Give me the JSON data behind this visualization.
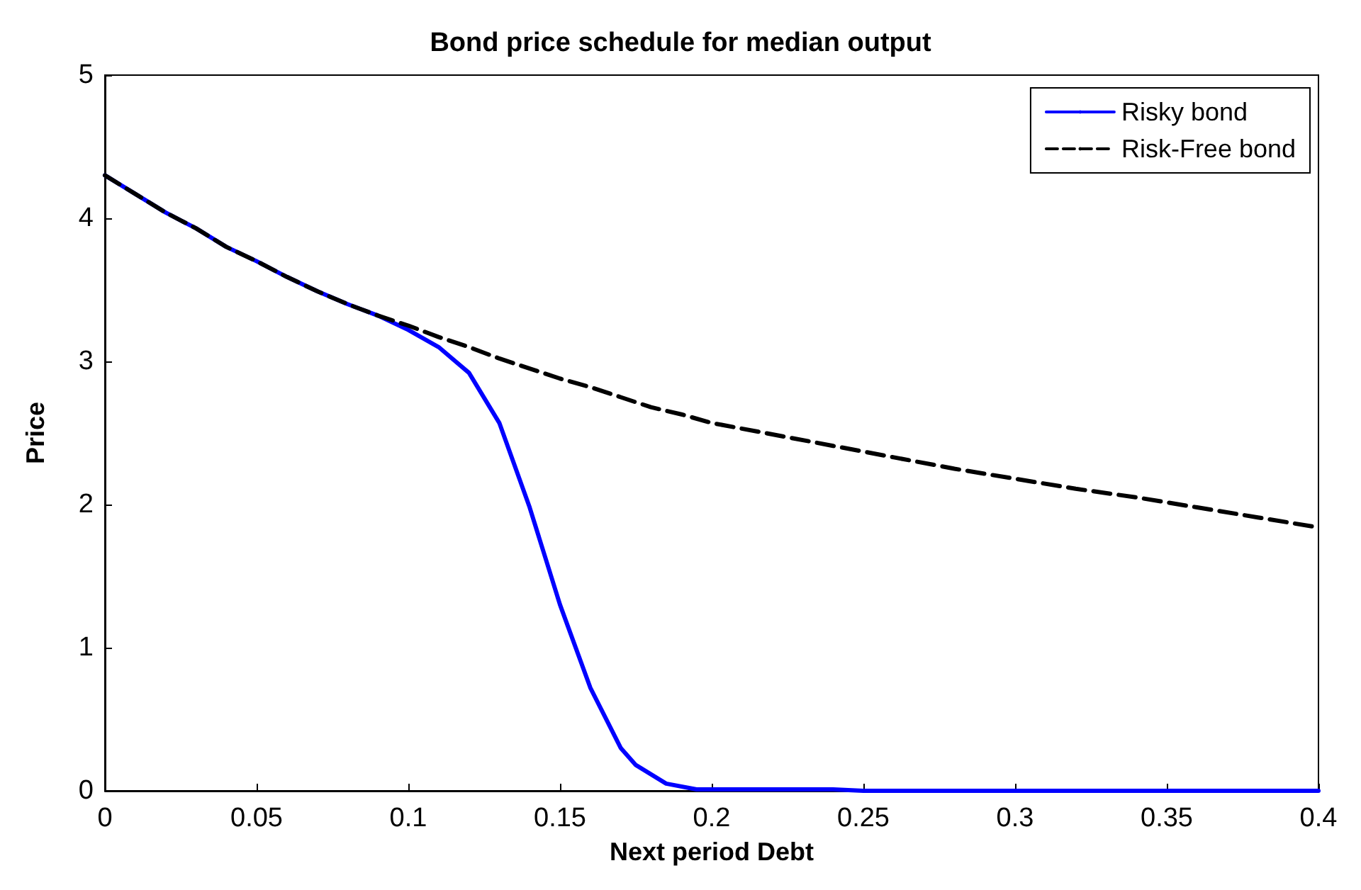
{
  "chart_data": {
    "type": "line",
    "title": "Bond price schedule for median output",
    "xlabel": "Next period Debt",
    "ylabel": "Price",
    "xlim": [
      0,
      0.4
    ],
    "xticks": [
      0,
      0.05,
      0.1,
      0.15,
      0.2,
      0.25,
      0.3,
      0.35,
      0.4
    ],
    "ylim": [
      0,
      5
    ],
    "yticks": [
      0,
      1,
      2,
      3,
      4,
      5
    ],
    "grid": false,
    "legend": "top right",
    "marker": "none",
    "series": [
      {
        "name": "Risky bond",
        "color": "#0000ff",
        "line_style": "solid",
        "x": [
          0,
          0.01,
          0.02,
          0.03,
          0.04,
          0.05,
          0.06,
          0.07,
          0.08,
          0.09,
          0.1,
          0.11,
          0.12,
          0.13,
          0.14,
          0.15,
          0.16,
          0.17,
          0.175,
          0.185,
          0.195,
          0.24,
          0.25,
          0.4
        ],
        "values": [
          4.3,
          4.17,
          4.04,
          3.93,
          3.8,
          3.7,
          3.59,
          3.49,
          3.4,
          3.32,
          3.22,
          3.1,
          2.92,
          2.57,
          1.98,
          1.3,
          0.72,
          0.3,
          0.18,
          0.05,
          0.01,
          0.01,
          0,
          0
        ]
      },
      {
        "name": "Risk-Free bond",
        "color": "#000000",
        "line_style": "dashed",
        "x": [
          0,
          0.01,
          0.02,
          0.03,
          0.04,
          0.05,
          0.06,
          0.07,
          0.08,
          0.09,
          0.1,
          0.11,
          0.12,
          0.13,
          0.14,
          0.15,
          0.16,
          0.17,
          0.18,
          0.19,
          0.2,
          0.22,
          0.24,
          0.26,
          0.28,
          0.3,
          0.32,
          0.34,
          0.36,
          0.38,
          0.4
        ],
        "values": [
          4.3,
          4.17,
          4.04,
          3.93,
          3.8,
          3.7,
          3.59,
          3.49,
          3.4,
          3.32,
          3.25,
          3.17,
          3.1,
          3.02,
          2.95,
          2.88,
          2.82,
          2.75,
          2.68,
          2.63,
          2.57,
          2.49,
          2.41,
          2.33,
          2.25,
          2.18,
          2.11,
          2.05,
          1.98,
          1.91,
          1.84
        ]
      }
    ]
  }
}
